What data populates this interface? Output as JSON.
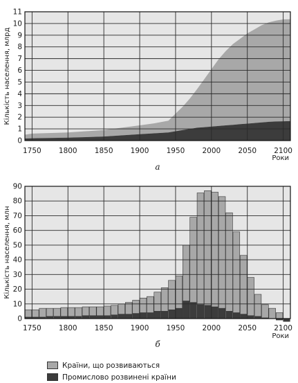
{
  "colors": {
    "developing": "#a8a8a8",
    "industrial": "#3c3c3c",
    "background": "#e6e6e6",
    "grid": "#2a2a2a"
  },
  "legend": {
    "developing": "Країни, що розвиваються",
    "industrial": "Промислово розвинені країни"
  },
  "chart_data": [
    {
      "type": "area",
      "panel_label": "а",
      "ylabel": "Кількість населення, млрд",
      "xlabel": "Роки",
      "xlim": [
        1740,
        2110
      ],
      "ylim": [
        0,
        11
      ],
      "x_ticks": [
        1750,
        1800,
        1850,
        1900,
        1950,
        2000,
        2050,
        2100
      ],
      "y_ticks": [
        0,
        1,
        2,
        3,
        4,
        5,
        6,
        7,
        8,
        9,
        10,
        11
      ],
      "grid": true,
      "stacked": true,
      "x": [
        1740,
        1750,
        1800,
        1850,
        1900,
        1920,
        1940,
        1950,
        1960,
        1970,
        1980,
        1990,
        2000,
        2010,
        2020,
        2030,
        2040,
        2050,
        2060,
        2070,
        2080,
        2090,
        2100,
        2110
      ],
      "series": [
        {
          "name": "Промислово розвинені країни",
          "values": [
            0.18,
            0.2,
            0.25,
            0.35,
            0.55,
            0.62,
            0.7,
            0.8,
            0.9,
            1.0,
            1.1,
            1.15,
            1.2,
            1.25,
            1.3,
            1.35,
            1.4,
            1.45,
            1.5,
            1.55,
            1.6,
            1.63,
            1.65,
            1.66
          ]
        },
        {
          "name": "Країни, що розвиваються",
          "values": [
            0.32,
            0.4,
            0.45,
            0.55,
            0.75,
            0.85,
            1.0,
            1.5,
            2.0,
            2.6,
            3.3,
            4.1,
            4.9,
            5.7,
            6.35,
            6.9,
            7.3,
            7.7,
            8.0,
            8.3,
            8.5,
            8.62,
            8.7,
            8.7
          ]
        }
      ]
    },
    {
      "type": "bar",
      "panel_label": "б",
      "ylabel": "Кількість населення, млн",
      "xlabel": "Роки",
      "xlim": [
        1740,
        2110
      ],
      "ylim": [
        0,
        90
      ],
      "x_ticks": [
        1750,
        1800,
        1850,
        1900,
        1950,
        2000,
        2050,
        2100
      ],
      "y_ticks": [
        0,
        10,
        20,
        30,
        40,
        50,
        60,
        70,
        80,
        90
      ],
      "grid": true,
      "bar_width_years": 10,
      "x": [
        1740,
        1750,
        1760,
        1770,
        1780,
        1790,
        1800,
        1810,
        1820,
        1830,
        1840,
        1850,
        1860,
        1870,
        1880,
        1890,
        1900,
        1910,
        1920,
        1930,
        1940,
        1950,
        1960,
        1970,
        1980,
        1990,
        2000,
        2010,
        2020,
        2030,
        2040,
        2050,
        2060,
        2070,
        2080,
        2090,
        2100
      ],
      "series": [
        {
          "name": "Промислово розвинені країни",
          "values": [
            1,
            1,
            1,
            1.5,
            1.5,
            1.5,
            1.5,
            1.5,
            2,
            2,
            2,
            2,
            2.5,
            3,
            3,
            3.5,
            4,
            4,
            5,
            5,
            6,
            7,
            12,
            11,
            9.5,
            9,
            8,
            7,
            5,
            4,
            3,
            2,
            1.5,
            0.5,
            0,
            -1,
            -2
          ]
        },
        {
          "name": "Країни, що розвиваються",
          "values": [
            5,
            5,
            6,
            5.5,
            5.5,
            6,
            6,
            6,
            6,
            6,
            6,
            6.5,
            6.5,
            7,
            8,
            9,
            10,
            11,
            13,
            16,
            20,
            22,
            38,
            58,
            76,
            78,
            78,
            76,
            67,
            55,
            40,
            26,
            15,
            9,
            7,
            4,
            0
          ]
        }
      ]
    }
  ]
}
